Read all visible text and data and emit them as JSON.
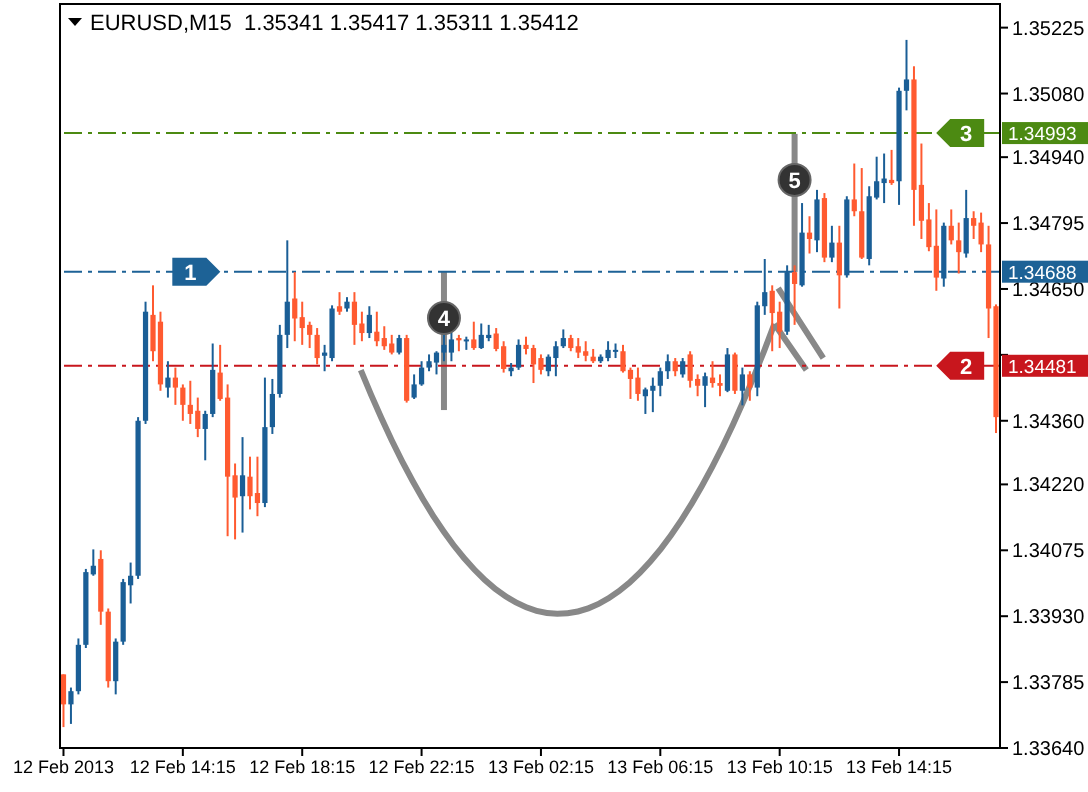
{
  "chart_data": {
    "type": "candlestick",
    "title": "EURUSD,M15  1.35341 1.35417 1.35311 1.35412",
    "x": [
      "2013-02-12T10:15",
      "2013-02-12T10:30",
      "2013-02-12T10:45",
      "2013-02-12T11:00",
      "2013-02-12T11:15",
      "2013-02-12T11:30",
      "2013-02-12T11:45",
      "2013-02-12T12:00",
      "2013-02-12T12:15",
      "2013-02-12T12:30",
      "2013-02-12T12:45",
      "2013-02-12T13:00",
      "2013-02-12T13:15",
      "2013-02-12T13:30",
      "2013-02-12T13:45",
      "2013-02-12T14:00",
      "2013-02-12T14:15",
      "2013-02-12T14:30",
      "2013-02-12T14:45",
      "2013-02-12T15:00",
      "2013-02-12T15:15",
      "2013-02-12T15:30",
      "2013-02-12T15:45",
      "2013-02-12T16:00",
      "2013-02-12T16:15",
      "2013-02-12T16:30",
      "2013-02-12T16:45",
      "2013-02-12T17:00",
      "2013-02-12T17:15",
      "2013-02-12T17:30",
      "2013-02-12T17:45",
      "2013-02-12T18:00",
      "2013-02-12T18:15",
      "2013-02-12T18:30",
      "2013-02-12T18:45",
      "2013-02-12T19:00",
      "2013-02-12T19:15",
      "2013-02-12T19:30",
      "2013-02-12T19:45",
      "2013-02-12T20:00",
      "2013-02-12T20:15",
      "2013-02-12T20:30",
      "2013-02-12T20:45",
      "2013-02-12T21:00",
      "2013-02-12T21:15",
      "2013-02-12T21:30",
      "2013-02-12T21:45",
      "2013-02-12T22:00",
      "2013-02-12T22:15",
      "2013-02-12T22:30",
      "2013-02-12T22:45",
      "2013-02-12T23:00",
      "2013-02-12T23:15",
      "2013-02-12T23:30",
      "2013-02-12T23:45",
      "2013-02-13T00:00",
      "2013-02-13T00:15",
      "2013-02-13T00:30",
      "2013-02-13T00:45",
      "2013-02-13T01:00",
      "2013-02-13T01:15",
      "2013-02-13T01:30",
      "2013-02-13T01:45",
      "2013-02-13T02:00",
      "2013-02-13T02:15",
      "2013-02-13T02:30",
      "2013-02-13T02:45",
      "2013-02-13T03:00",
      "2013-02-13T03:15",
      "2013-02-13T03:30",
      "2013-02-13T03:45",
      "2013-02-13T04:00",
      "2013-02-13T04:15",
      "2013-02-13T04:30",
      "2013-02-13T04:45",
      "2013-02-13T05:00",
      "2013-02-13T05:15",
      "2013-02-13T05:30",
      "2013-02-13T05:45",
      "2013-02-13T06:00",
      "2013-02-13T06:15",
      "2013-02-13T06:30",
      "2013-02-13T06:45",
      "2013-02-13T07:00",
      "2013-02-13T07:15",
      "2013-02-13T07:30",
      "2013-02-13T07:45",
      "2013-02-13T08:00",
      "2013-02-13T08:15",
      "2013-02-13T08:30",
      "2013-02-13T08:45",
      "2013-02-13T09:00",
      "2013-02-13T09:15",
      "2013-02-13T09:30",
      "2013-02-13T09:45",
      "2013-02-13T10:00",
      "2013-02-13T10:15",
      "2013-02-13T10:30",
      "2013-02-13T10:45",
      "2013-02-13T11:00",
      "2013-02-13T11:15",
      "2013-02-13T11:30",
      "2013-02-13T11:45",
      "2013-02-13T12:00",
      "2013-02-13T12:15",
      "2013-02-13T12:30",
      "2013-02-13T12:45",
      "2013-02-13T13:00",
      "2013-02-13T13:15",
      "2013-02-13T13:30",
      "2013-02-13T13:45",
      "2013-02-13T14:00",
      "2013-02-13T14:15",
      "2013-02-13T14:30",
      "2013-02-13T14:45",
      "2013-02-13T15:00",
      "2013-02-13T15:15",
      "2013-02-13T15:30",
      "2013-02-13T15:45",
      "2013-02-13T16:00",
      "2013-02-13T16:15",
      "2013-02-13T16:30",
      "2013-02-13T16:45",
      "2013-02-13T17:00",
      "2013-02-13T17:15",
      "2013-02-13T17:30"
    ],
    "ohlc": [
      [
        1.33802,
        1.33802,
        1.33686,
        1.33736
      ],
      [
        1.33736,
        1.33773,
        1.33693,
        1.33765
      ],
      [
        1.33765,
        1.33881,
        1.33758,
        1.33867
      ],
      [
        1.33867,
        1.34034,
        1.3386,
        1.34027
      ],
      [
        1.34022,
        1.34077,
        1.34019,
        1.34041
      ],
      [
        1.34056,
        1.34075,
        1.33911,
        1.3394
      ],
      [
        1.3394,
        1.33947,
        1.33773,
        1.33787
      ],
      [
        1.33787,
        1.33881,
        1.33758,
        1.33874
      ],
      [
        1.33874,
        1.34012,
        1.33867,
        1.34005
      ],
      [
        1.33998,
        1.34048,
        1.33958,
        1.34019
      ],
      [
        1.34019,
        1.34368,
        1.34012,
        1.3436
      ],
      [
        1.3436,
        1.34622,
        1.34353,
        1.346
      ],
      [
        1.34593,
        1.34658,
        1.34491,
        1.34513
      ],
      [
        1.34578,
        1.346,
        1.34426,
        1.3444
      ],
      [
        1.34433,
        1.34491,
        1.34411,
        1.34455
      ],
      [
        1.34455,
        1.34477,
        1.34395,
        1.34433
      ],
      [
        1.34433,
        1.3444,
        1.3436,
        1.34395
      ],
      [
        1.34395,
        1.34448,
        1.34353,
        1.34375
      ],
      [
        1.34382,
        1.34411,
        1.34324,
        1.34342
      ],
      [
        1.34342,
        1.34382,
        1.34273,
        1.34375
      ],
      [
        1.34375,
        1.3453,
        1.34368,
        1.34472
      ],
      [
        1.34466,
        1.34527,
        1.34404,
        1.34408
      ],
      [
        1.34411,
        1.3444,
        1.34106,
        1.34237
      ],
      [
        1.3424,
        1.34266,
        1.34099,
        1.34191
      ],
      [
        1.34194,
        1.34324,
        1.34114,
        1.3424
      ],
      [
        1.34237,
        1.34281,
        1.34165,
        1.34194
      ],
      [
        1.34201,
        1.34281,
        1.3415,
        1.34179
      ],
      [
        1.34179,
        1.34455,
        1.3417,
        1.34346
      ],
      [
        1.34346,
        1.34452,
        1.34331,
        1.34419
      ],
      [
        1.34419,
        1.34571,
        1.34411,
        1.34549
      ],
      [
        1.34549,
        1.34757,
        1.3452,
        1.34622
      ],
      [
        1.34629,
        1.34687,
        1.34535,
        1.34585
      ],
      [
        1.34588,
        1.34622,
        1.34527,
        1.34564
      ],
      [
        1.34571,
        1.34578,
        1.3452,
        1.34549
      ],
      [
        1.34549,
        1.34564,
        1.34484,
        1.34498
      ],
      [
        1.34503,
        1.34527,
        1.34469,
        1.3451
      ],
      [
        1.34498,
        1.34614,
        1.34491,
        1.34607
      ],
      [
        1.34612,
        1.34643,
        1.34593,
        1.346
      ],
      [
        1.34607,
        1.34632,
        1.346,
        1.34622
      ],
      [
        1.34622,
        1.34643,
        1.34527,
        1.34571
      ],
      [
        1.34574,
        1.346,
        1.34535,
        1.34553
      ],
      [
        1.34553,
        1.34612,
        1.34542,
        1.34593
      ],
      [
        1.34556,
        1.346,
        1.34524,
        1.34535
      ],
      [
        1.34542,
        1.34568,
        1.34516,
        1.34524
      ],
      [
        1.3453,
        1.34549,
        1.34506,
        1.3451
      ],
      [
        1.3451,
        1.34549,
        1.34506,
        1.34542
      ],
      [
        1.34542,
        1.34549,
        1.344,
        1.34404
      ],
      [
        1.34411,
        1.34462,
        1.34408,
        1.3444
      ],
      [
        1.3444,
        1.34491,
        1.34437,
        1.34477
      ],
      [
        1.34477,
        1.34506,
        1.34469,
        1.34491
      ],
      [
        1.34488,
        1.34513,
        1.34462,
        1.3451
      ],
      [
        1.3451,
        1.34556,
        1.34491,
        1.34527
      ],
      [
        1.3451,
        1.34556,
        1.34491,
        1.34539
      ],
      [
        1.34542,
        1.34549,
        1.34513,
        1.34537
      ],
      [
        1.34536,
        1.34545,
        1.34516,
        1.34539
      ],
      [
        1.34539,
        1.34578,
        1.34516,
        1.3452
      ],
      [
        1.3452,
        1.34574,
        1.34518,
        1.34549
      ],
      [
        1.34542,
        1.34571,
        1.34535,
        1.34549
      ],
      [
        1.34552,
        1.34564,
        1.34513,
        1.34518
      ],
      [
        1.34524,
        1.34535,
        1.34466,
        1.34474
      ],
      [
        1.34469,
        1.34487,
        1.34458,
        1.34477
      ],
      [
        1.34477,
        1.34539,
        1.34472,
        1.34527
      ],
      [
        1.34527,
        1.34545,
        1.34506,
        1.34518
      ],
      [
        1.3452,
        1.34527,
        1.34443,
        1.34484
      ],
      [
        1.34498,
        1.34506,
        1.34462,
        1.34472
      ],
      [
        1.34469,
        1.34506,
        1.34458,
        1.34501
      ],
      [
        1.34498,
        1.34535,
        1.34458,
        1.34524
      ],
      [
        1.34524,
        1.34561,
        1.3452,
        1.34542
      ],
      [
        1.34542,
        1.34549,
        1.34513,
        1.3452
      ],
      [
        1.34524,
        1.34542,
        1.34498,
        1.3451
      ],
      [
        1.34513,
        1.34535,
        1.34491,
        1.34503
      ],
      [
        1.34501,
        1.34518,
        1.34487,
        1.34491
      ],
      [
        1.34491,
        1.34506,
        1.34487,
        1.34501
      ],
      [
        1.34498,
        1.34535,
        1.34491,
        1.34516
      ],
      [
        1.34513,
        1.3453,
        1.34498,
        1.34516
      ],
      [
        1.34513,
        1.34527,
        1.34466,
        1.34469
      ],
      [
        1.34472,
        1.34477,
        1.34408,
        1.34452
      ],
      [
        1.34455,
        1.34477,
        1.34404,
        1.34419
      ],
      [
        1.34414,
        1.34433,
        1.34375,
        1.34429
      ],
      [
        1.34426,
        1.34455,
        1.34379,
        1.34437
      ],
      [
        1.34437,
        1.34477,
        1.34414,
        1.34469
      ],
      [
        1.34469,
        1.34506,
        1.34452,
        1.34491
      ],
      [
        1.34491,
        1.34498,
        1.34458,
        1.34469
      ],
      [
        1.34462,
        1.34498,
        1.34455,
        1.34491
      ],
      [
        1.34506,
        1.34513,
        1.34433,
        1.34448
      ],
      [
        1.34452,
        1.34462,
        1.34414,
        1.34437
      ],
      [
        1.34437,
        1.34466,
        1.3439,
        1.34458
      ],
      [
        1.34455,
        1.34491,
        1.34433,
        1.34443
      ],
      [
        1.34443,
        1.34462,
        1.34414,
        1.34437
      ],
      [
        1.34426,
        1.3452,
        1.34423,
        1.34506
      ],
      [
        1.34506,
        1.3451,
        1.34419,
        1.34426
      ],
      [
        1.34426,
        1.34477,
        1.34394,
        1.34462
      ],
      [
        1.34462,
        1.34469,
        1.34404,
        1.34433
      ],
      [
        1.34433,
        1.34622,
        1.34414,
        1.34614
      ],
      [
        1.34612,
        1.34716,
        1.34593,
        1.34643
      ],
      [
        1.34646,
        1.34658,
        1.34513,
        1.34597
      ],
      [
        1.346,
        1.34622,
        1.3452,
        1.34556
      ],
      [
        1.34556,
        1.34702,
        1.34549,
        1.34687
      ],
      [
        1.34687,
        1.34702,
        1.34571,
        1.34661
      ],
      [
        1.34658,
        1.34839,
        1.34655,
        1.34774
      ],
      [
        1.34774,
        1.3481,
        1.34728,
        1.3476
      ],
      [
        1.34757,
        1.34868,
        1.34731,
        1.34847
      ],
      [
        1.3485,
        1.34861,
        1.34709,
        1.34719
      ],
      [
        1.34719,
        1.34789,
        1.34709,
        1.34752
      ],
      [
        1.34752,
        1.34789,
        1.34607,
        1.3468
      ],
      [
        1.3468,
        1.34854,
        1.34675,
        1.34847
      ],
      [
        1.34847,
        1.34926,
        1.3481,
        1.34821
      ],
      [
        1.34821,
        1.34916,
        1.34716,
        1.34719
      ],
      [
        1.34716,
        1.34876,
        1.34702,
        1.34854
      ],
      [
        1.34851,
        1.34941,
        1.34847,
        1.34887
      ],
      [
        1.34883,
        1.34948,
        1.34839,
        1.34893
      ],
      [
        1.3489,
        1.34956,
        1.34879,
        1.34883
      ],
      [
        1.34887,
        1.35093,
        1.34835,
        1.35086
      ],
      [
        1.35086,
        1.35198,
        1.35043,
        1.35111
      ],
      [
        1.35111,
        1.3514,
        1.34789,
        1.34868
      ],
      [
        1.34879,
        1.3497,
        1.3476,
        1.348
      ],
      [
        1.34803,
        1.34839,
        1.34733,
        1.34742
      ],
      [
        1.34745,
        1.34825,
        1.34646,
        1.34675
      ],
      [
        1.34673,
        1.34796,
        1.34655,
        1.34789
      ],
      [
        1.34789,
        1.34825,
        1.34748,
        1.34757
      ],
      [
        1.34757,
        1.34796,
        1.34684,
        1.34731
      ],
      [
        1.34728,
        1.34868,
        1.34719,
        1.34806
      ],
      [
        1.34806,
        1.34821,
        1.3476,
        1.34789
      ],
      [
        1.34796,
        1.34818,
        1.34731,
        1.34748
      ],
      [
        1.34748,
        1.34789,
        1.34542,
        1.34607
      ],
      [
        1.34612,
        1.34616,
        1.34333,
        1.34368
      ]
    ],
    "colors": [
      "#ff5a30",
      "#1a5e96",
      "#1a5e96",
      "#1a5e96",
      "#1a5e96",
      "#ff5a30",
      "#ff5a30",
      "#1a5e96",
      "#1a5e96",
      "#1a5e96",
      "#1a5e96",
      "#1a5e96",
      "#ff5a30",
      "#ff5a30",
      "#1a5e96",
      "#ff5a30",
      "#ff5a30",
      "#ff5a30",
      "#ff5a30",
      "#1a5e96",
      "#1a5e96",
      "#ff5a30",
      "#ff5a30",
      "#ff5a30",
      "#1a5e96",
      "#ff5a30",
      "#ff5a30",
      "#1a5e96",
      "#1a5e96",
      "#1a5e96",
      "#1a5e96",
      "#ff5a30",
      "#ff5a30",
      "#ff5a30",
      "#ff5a30",
      "#1a5e96",
      "#1a5e96",
      "#ff5a30",
      "#1a5e96",
      "#ff5a30",
      "#ff5a30",
      "#1a5e96",
      "#ff5a30",
      "#ff5a30",
      "#ff5a30",
      "#1a5e96",
      "#ff5a30",
      "#1a5e96",
      "#1a5e96",
      "#1a5e96",
      "#1a5e96",
      "#1a5e96",
      "#1a5e96",
      "#ff5a30",
      "#1a5e96",
      "#ff5a30",
      "#1a5e96",
      "#1a5e96",
      "#ff5a30",
      "#ff5a30",
      "#1a5e96",
      "#1a5e96",
      "#ff5a30",
      "#ff5a30",
      "#ff5a30",
      "#1a5e96",
      "#1a5e96",
      "#1a5e96",
      "#ff5a30",
      "#ff5a30",
      "#ff5a30",
      "#ff5a30",
      "#1a5e96",
      "#1a5e96",
      "#1a5e96",
      "#ff5a30",
      "#ff5a30",
      "#ff5a30",
      "#1a5e96",
      "#1a5e96",
      "#1a5e96",
      "#1a5e96",
      "#ff5a30",
      "#1a5e96",
      "#ff5a30",
      "#ff5a30",
      "#1a5e96",
      "#ff5a30",
      "#ff5a30",
      "#1a5e96",
      "#ff5a30",
      "#1a5e96",
      "#ff5a30",
      "#1a5e96",
      "#1a5e96",
      "#ff5a30",
      "#ff5a30",
      "#1a5e96",
      "#ff5a30",
      "#1a5e96",
      "#ff5a30",
      "#1a5e96",
      "#ff5a30",
      "#1a5e96",
      "#ff5a30",
      "#1a5e96",
      "#ff5a30",
      "#ff5a30",
      "#1a5e96",
      "#1a5e96",
      "#1a5e96",
      "#ff5a30",
      "#1a5e96",
      "#1a5e96",
      "#ff5a30",
      "#ff5a30",
      "#ff5a30",
      "#ff5a30",
      "#1a5e96",
      "#ff5a30",
      "#ff5a30",
      "#1a5e96",
      "#ff5a30",
      "#ff5a30",
      "#ff5a30",
      "#ff5a30"
    ],
    "xlim": [
      "2013-02-12T10:08",
      "2013-02-13T17:38"
    ],
    "xticks": [
      {
        "value": "2013-02-12T10:15",
        "label": "12 Feb 2013"
      },
      {
        "value": "2013-02-12T14:15",
        "label": "12 Feb 14:15"
      },
      {
        "value": "2013-02-12T18:15",
        "label": "12 Feb 18:15"
      },
      {
        "value": "2013-02-12T22:15",
        "label": "12 Feb 22:15"
      },
      {
        "value": "2013-02-13T02:15",
        "label": "13 Feb 02:15"
      },
      {
        "value": "2013-02-13T06:15",
        "label": "13 Feb 06:15"
      },
      {
        "value": "2013-02-13T10:15",
        "label": "13 Feb 10:15"
      },
      {
        "value": "2013-02-13T14:15",
        "label": "13 Feb 14:15"
      }
    ],
    "ylim": [
      1.3364,
      1.35277
    ],
    "yticks": [
      1.35225,
      {
        "value": 1.3508,
        "label": "1.35080"
      },
      {
        "value": 1.3494,
        "label": "1.34940"
      },
      1.34795,
      {
        "value": 1.3465,
        "label": "1.34650"
      },
      {
        "value": 1.34505,
        "label": null
      },
      {
        "value": 1.3436,
        "label": "1.34360"
      },
      {
        "value": 1.3422,
        "label": "1.34220"
      },
      1.34075,
      {
        "value": 1.3393,
        "label": "1.33930"
      },
      1.33785,
      {
        "value": 1.3364,
        "label": "1.33640"
      }
    ],
    "ref_lines": [
      {
        "axis": "y",
        "value": 1.34688,
        "label": "1.34688",
        "color": "#1d6296",
        "line_style": "dashed"
      },
      {
        "axis": "y",
        "value": 1.34481,
        "label": "1.34481",
        "color": "#c8161d",
        "line_style": "dashed"
      },
      {
        "axis": "y",
        "value": 1.34993,
        "label": "1.34993",
        "color": "#4c8a12",
        "line_style": "dashed"
      }
    ],
    "annotations": [
      {
        "text": "1",
        "x": "2013-02-12T14:30",
        "y": 1.34688
      },
      {
        "text": "2",
        "x": "2013-02-13T16:30",
        "y": 1.34481
      },
      {
        "text": "3",
        "x": "2013-02-13T16:30",
        "y": 1.34993
      },
      {
        "text": "4",
        "x": "2013-02-12T23:00",
        "y": 1.34586
      },
      {
        "text": "5",
        "x": "2013-02-13T10:45",
        "y": 1.3489
      }
    ]
  }
}
